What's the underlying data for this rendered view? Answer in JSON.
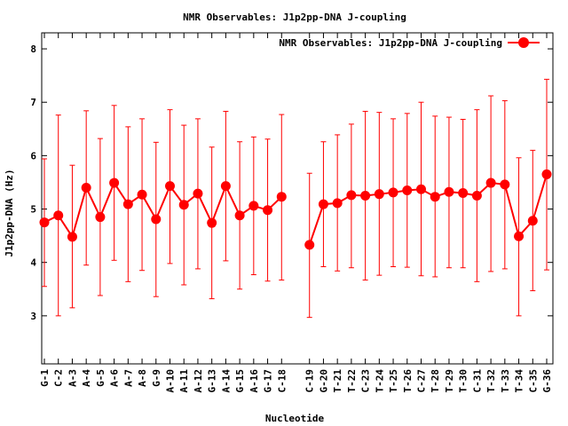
{
  "chart_data": {
    "type": "line",
    "title": "NMR Observables: J1p2pp-DNA J-coupling",
    "xlabel": "Nucleotide",
    "ylabel": "J1p2pp-DNA (Hz)",
    "ylim": [
      2.1,
      8.3
    ],
    "yticks": [
      3,
      4,
      5,
      6,
      7,
      8
    ],
    "legend_position": "top-right",
    "grid": false,
    "series": [
      {
        "name": "NMR Observables: J1p2pp-DNA J-coupling",
        "color": "#ff0000",
        "segments": [
          {
            "categories": [
              "G-1",
              "C-2",
              "A-3",
              "A-4",
              "G-5",
              "A-6",
              "A-7",
              "A-8",
              "G-9",
              "A-10",
              "A-11",
              "A-12",
              "G-13",
              "A-14",
              "G-15",
              "A-16",
              "G-17",
              "C-18"
            ],
            "values": [
              4.75,
              4.88,
              4.48,
              5.4,
              4.85,
              5.49,
              5.09,
              5.27,
              4.81,
              5.43,
              5.08,
              5.29,
              4.74,
              5.43,
              4.88,
              5.06,
              4.98,
              5.23
            ],
            "error_low": [
              3.55,
              3.0,
              3.15,
              3.95,
              3.38,
              4.04,
              3.64,
              3.85,
              3.36,
              3.98,
              3.58,
              3.88,
              3.32,
              4.03,
              3.5,
              3.77,
              3.65,
              3.67
            ],
            "error_high": [
              5.94,
              6.76,
              5.82,
              6.84,
              6.32,
              6.94,
              6.54,
              6.69,
              6.25,
              6.86,
              6.57,
              6.69,
              6.16,
              6.83,
              6.26,
              6.35,
              6.31,
              6.77
            ]
          },
          {
            "categories": [
              "C-19",
              "G-20",
              "T-21",
              "T-22",
              "C-23",
              "T-24",
              "T-25",
              "T-26",
              "C-27",
              "T-28",
              "T-29",
              "T-30",
              "C-31",
              "T-32",
              "T-33",
              "T-34",
              "C-35",
              "G-36"
            ],
            "values": [
              4.33,
              5.09,
              5.11,
              5.26,
              5.25,
              5.28,
              5.31,
              5.35,
              5.37,
              5.23,
              5.32,
              5.3,
              5.25,
              5.49,
              5.46,
              4.49,
              4.78,
              5.65
            ],
            "error_low": [
              2.97,
              3.92,
              3.84,
              3.9,
              3.67,
              3.76,
              3.92,
              3.91,
              3.75,
              3.73,
              3.9,
              3.9,
              3.64,
              3.83,
              3.88,
              3.0,
              3.47,
              3.86
            ],
            "error_high": [
              5.67,
              6.26,
              6.39,
              6.59,
              6.83,
              6.81,
              6.69,
              6.79,
              7.0,
              6.74,
              6.72,
              6.68,
              6.86,
              7.12,
              7.03,
              5.96,
              6.1,
              7.43
            ]
          }
        ]
      }
    ]
  }
}
